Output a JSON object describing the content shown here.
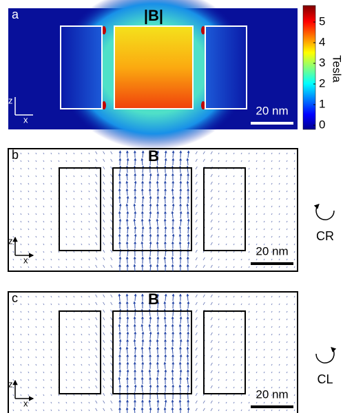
{
  "panels": [
    {
      "label": "a",
      "title": "|B|",
      "scale_bar": "20 nm",
      "axis_z": "z",
      "axis_x": "x"
    },
    {
      "label": "b",
      "title": "B",
      "scale_bar": "20 nm",
      "axis_z": "z",
      "axis_x": "x",
      "rotation": "CR"
    },
    {
      "label": "c",
      "title": "B",
      "scale_bar": "20 nm",
      "axis_z": "z",
      "axis_x": "x",
      "rotation": "CL"
    }
  ],
  "colorbar": {
    "label": "Tesla",
    "ticks": [
      0,
      1,
      2,
      3,
      4,
      5
    ]
  }
}
